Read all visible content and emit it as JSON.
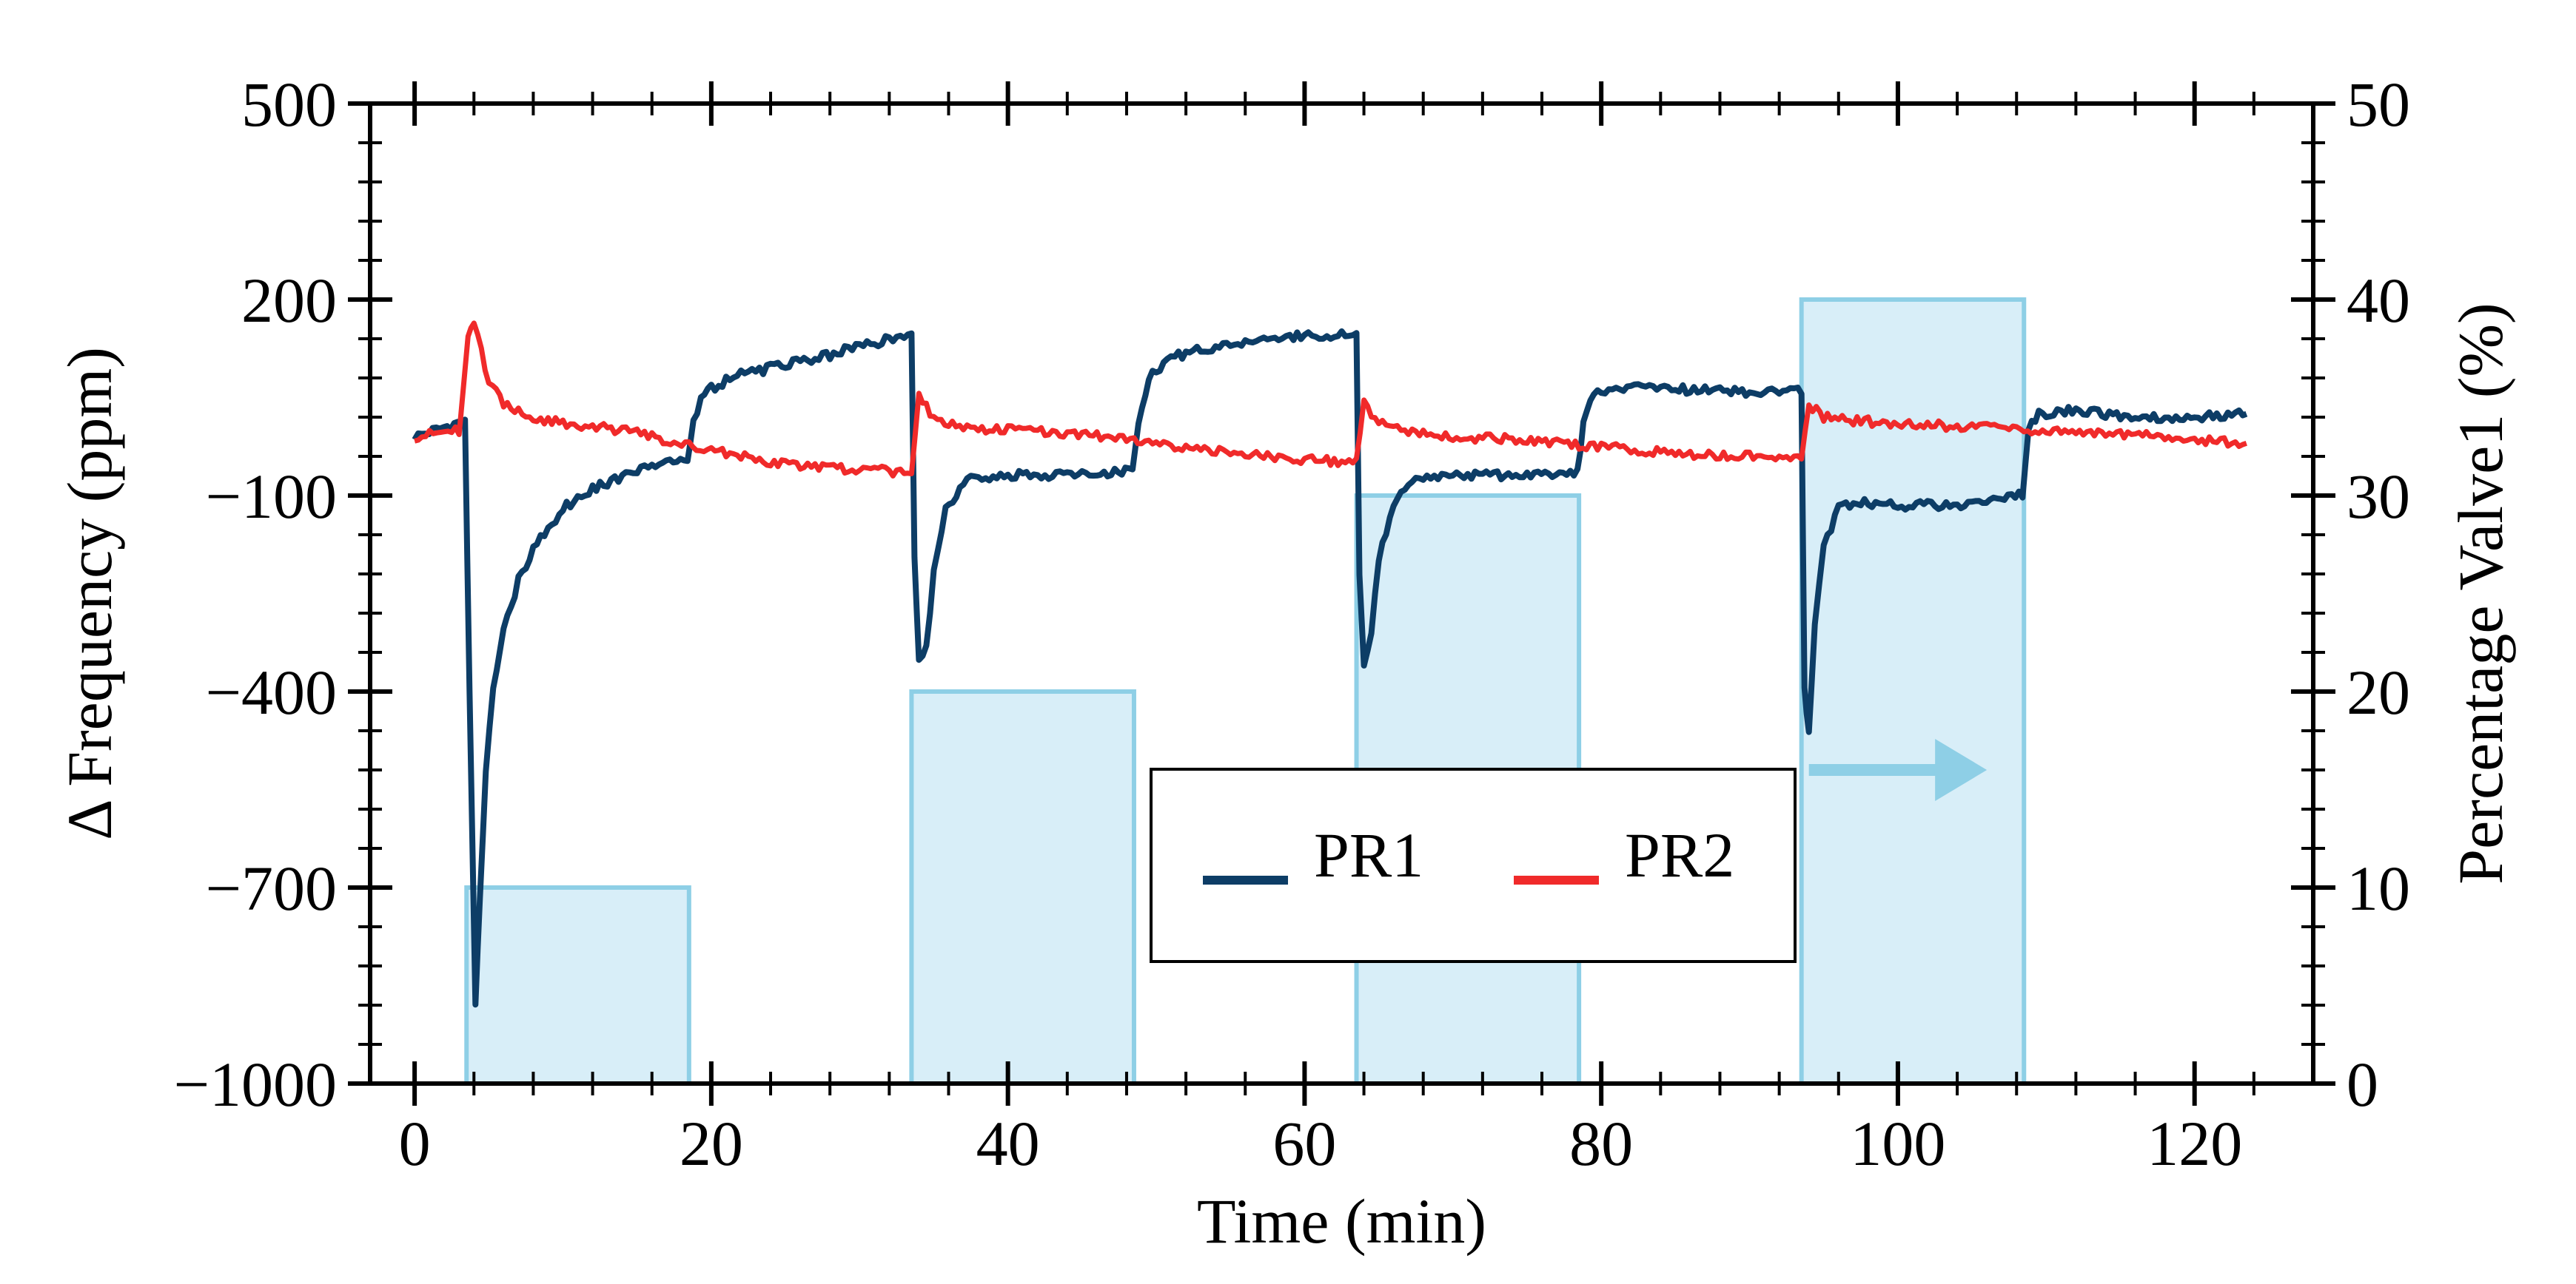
{
  "chart_data": {
    "type": "line",
    "xlabel": "Time (min)",
    "ylabel_left": "Δ Frequency (ppm)",
    "ylabel_right": "Percentage Valve1 (%)",
    "xlim": [
      -3,
      128
    ],
    "ylim_left": [
      -1000,
      500
    ],
    "ylim_right": [
      0,
      50
    ],
    "x_ticks": [
      0,
      20,
      40,
      60,
      80,
      100,
      120
    ],
    "y_ticks_left": [
      500,
      200,
      -100,
      -400,
      -700,
      -1000
    ],
    "y_ticks_left_labels": [
      "500",
      "200",
      "−100",
      "−400",
      "−700",
      "−1000"
    ],
    "y_ticks_right": [
      50,
      40,
      30,
      20,
      10,
      0
    ],
    "legend": {
      "position": "center-bottom",
      "entries": [
        "PR1",
        "PR2"
      ]
    },
    "series": [
      {
        "name": "PR1",
        "color": "#0d3d66",
        "x": [
          0,
          3.4,
          3.7,
          4.1,
          4.4,
          4.8,
          5.3,
          6,
          7,
          8,
          10,
          12,
          14,
          16,
          18.4,
          18.8,
          19.3,
          20,
          22,
          25,
          28,
          30,
          33.5,
          33.7,
          34,
          34.5,
          35,
          35.8,
          37,
          38.5,
          40,
          42,
          44,
          46,
          48.4,
          48.8,
          49.5,
          51,
          53,
          56,
          60,
          63.5,
          63.7,
          64,
          64.5,
          65,
          66,
          67.5,
          69,
          72,
          75,
          78.4,
          78.8,
          79.5,
          82,
          86,
          90,
          93.5,
          93.7,
          94,
          94.4,
          95,
          96,
          97.5,
          100,
          104,
          108.4,
          108.8,
          109.5,
          112,
          116,
          120,
          123.5
        ],
        "y": [
          -10,
          15,
          -400,
          -880,
          -720,
          -520,
          -400,
          -310,
          -230,
          -180,
          -120,
          -90,
          -70,
          -55,
          -45,
          10,
          45,
          65,
          85,
          100,
          115,
          130,
          145,
          -200,
          -350,
          -330,
          -220,
          -120,
          -80,
          -70,
          -70,
          -68,
          -70,
          -65,
          -62,
          10,
          80,
          110,
          125,
          135,
          145,
          145,
          -220,
          -360,
          -310,
          -200,
          -110,
          -75,
          -70,
          -70,
          -68,
          -65,
          10,
          55,
          65,
          62,
          58,
          60,
          -400,
          -460,
          -300,
          -180,
          -120,
          -110,
          -115,
          -115,
          -100,
          0,
          25,
          30,
          20,
          20,
          25
        ]
      },
      {
        "name": "PR2",
        "color": "#f02a2a",
        "x": [
          0,
          3,
          3.6,
          4,
          4.5,
          5,
          6,
          8,
          10,
          14,
          18,
          22,
          26,
          30,
          33.5,
          34,
          35,
          37,
          40,
          45,
          50,
          55,
          60,
          63.5,
          64,
          65,
          67,
          70,
          75,
          80,
          85,
          90,
          93.5,
          94,
          95,
          97,
          100,
          105,
          110,
          115,
          120,
          123.5
        ],
        "y": [
          -10,
          0,
          140,
          160,
          120,
          75,
          40,
          20,
          10,
          0,
          -20,
          -40,
          -55,
          -60,
          -65,
          50,
          20,
          5,
          0,
          -5,
          -20,
          -35,
          -45,
          -50,
          40,
          10,
          0,
          -10,
          -15,
          -25,
          -35,
          -40,
          -40,
          40,
          20,
          15,
          10,
          5,
          0,
          -5,
          -15,
          -20
        ]
      },
      {
        "name": "Percentage Valve1",
        "axis": "right",
        "color": "#8ecfe6",
        "type": "area",
        "steps": [
          {
            "start": 3.5,
            "end": 18.5,
            "value": 10
          },
          {
            "start": 33.5,
            "end": 48.5,
            "value": 20
          },
          {
            "start": 63.5,
            "end": 78.5,
            "value": 30
          },
          {
            "start": 93.5,
            "end": 108.5,
            "value": 40
          }
        ]
      }
    ],
    "annotations": [
      {
        "type": "arrow",
        "direction": "right",
        "x_start": 94,
        "x_end": 106,
        "y_right": 16
      }
    ]
  }
}
